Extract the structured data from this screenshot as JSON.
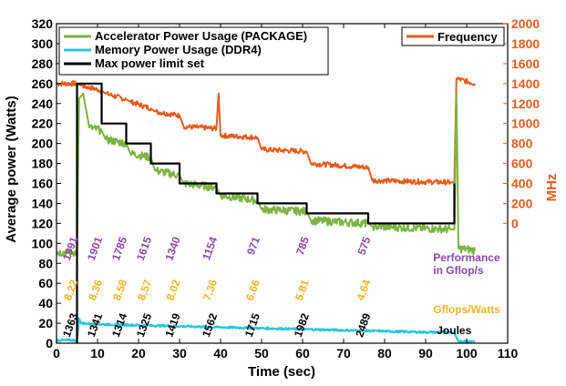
{
  "chart_data": {
    "type": "line",
    "xlabel": "Time (sec)",
    "ylabel": "Average power (Watts)",
    "y2label": "MHz",
    "xlim": [
      0,
      110
    ],
    "ylim": [
      0,
      320
    ],
    "y2lim": [
      -1200,
      2000
    ],
    "x_ticks": [
      "0",
      "10",
      "20",
      "30",
      "40",
      "50",
      "60",
      "70",
      "80",
      "90",
      "100",
      "110"
    ],
    "y_ticks": [
      "0",
      "20",
      "40",
      "60",
      "80",
      "100",
      "120",
      "140",
      "160",
      "180",
      "200",
      "220",
      "240",
      "260",
      "280",
      "300",
      "320"
    ],
    "y2_ticks": [
      "0",
      "200",
      "400",
      "600",
      "800",
      "1000",
      "1200",
      "1400",
      "1600",
      "1800",
      "2000"
    ],
    "legend_left": {
      "placement": "top-left",
      "items": [
        {
          "label": "Accelerator Power Usage (PACKAGE)",
          "color": "#7cb342"
        },
        {
          "label": "Memory Power Usage (DDR4)",
          "color": "#26c6da"
        },
        {
          "label": "Max power limit set",
          "color": "#000000"
        }
      ]
    },
    "legend_right": {
      "placement": "top-right",
      "items": [
        {
          "label": "Frequency",
          "color": "#e65c1e"
        }
      ]
    },
    "series": [
      {
        "name": "Accelerator Power Usage (PACKAGE)",
        "axis": "left",
        "color": "#7cb342",
        "x": [
          0,
          5,
          5.5,
          6.5,
          8,
          11,
          12,
          17,
          18,
          23,
          24,
          30,
          31,
          39,
          40,
          49,
          50,
          61,
          62,
          76,
          77,
          96,
          97,
          97.5,
          98,
          102
        ],
        "y": [
          91,
          91,
          245,
          250,
          216,
          213,
          204,
          200,
          190,
          186,
          173,
          168,
          160,
          156,
          148,
          143,
          134,
          132,
          123,
          120,
          117,
          114,
          114,
          250,
          95,
          93
        ]
      },
      {
        "name": "Memory Power Usage (DDR4)",
        "axis": "left",
        "color": "#26c6da",
        "x": [
          0,
          5,
          5.5,
          6,
          10,
          20,
          30,
          40,
          50,
          60,
          70,
          80,
          90,
          96,
          97,
          98,
          102
        ],
        "y": [
          3,
          3,
          25,
          20,
          19,
          18,
          17,
          16,
          15,
          14,
          13,
          12,
          11,
          11,
          10,
          2,
          2
        ]
      },
      {
        "name": "Max power limit set",
        "axis": "left",
        "color": "#000000",
        "x": [
          5,
          5,
          11,
          11,
          17,
          17,
          23,
          23,
          30,
          30,
          39,
          39,
          49,
          49,
          61,
          61,
          76,
          76,
          97,
          97
        ],
        "y": [
          0,
          260,
          260,
          220,
          220,
          200,
          200,
          180,
          180,
          160,
          160,
          150,
          150,
          140,
          140,
          130,
          130,
          120,
          120,
          160
        ]
      },
      {
        "name": "Frequency",
        "axis": "right",
        "color": "#e65c1e",
        "x": [
          0,
          5,
          6,
          11,
          12,
          17,
          18,
          23,
          24,
          30,
          31,
          39,
          39.5,
          40,
          49,
          50,
          61,
          62,
          76,
          77,
          96,
          97,
          97.5,
          102
        ],
        "y": [
          1400,
          1400,
          1380,
          1330,
          1300,
          1240,
          1220,
          1150,
          1120,
          1080,
          970,
          950,
          1300,
          880,
          860,
          740,
          720,
          600,
          560,
          430,
          410,
          410,
          1450,
          1400
        ]
      }
    ],
    "annotations": {
      "performance": {
        "label_lines": [
          "Performance",
          "in Gflop/s"
        ],
        "color": "#8e44ad",
        "points": [
          {
            "x": 5.2,
            "text": "1991"
          },
          {
            "x": 11.2,
            "text": "1901"
          },
          {
            "x": 17.2,
            "text": "1785"
          },
          {
            "x": 23.2,
            "text": "1615"
          },
          {
            "x": 30.2,
            "text": "1340"
          },
          {
            "x": 39.2,
            "text": "1154"
          },
          {
            "x": 49.6,
            "text": "971"
          },
          {
            "x": 61.6,
            "text": "785"
          },
          {
            "x": 76.6,
            "text": "575"
          }
        ]
      },
      "efficiency": {
        "label_lines": [
          "Gflops/Watts"
        ],
        "color": "#f0b429",
        "points": [
          {
            "x": 5.2,
            "text": "8.22"
          },
          {
            "x": 11.2,
            "text": "8.36"
          },
          {
            "x": 17.2,
            "text": "8.58"
          },
          {
            "x": 23.2,
            "text": "8.57"
          },
          {
            "x": 30.2,
            "text": "8.02"
          },
          {
            "x": 39.2,
            "text": "7.36"
          },
          {
            "x": 49.6,
            "text": "6.66"
          },
          {
            "x": 61.6,
            "text": "5.81"
          },
          {
            "x": 76.6,
            "text": "4.64"
          }
        ]
      },
      "energy": {
        "label_lines": [
          "Joules"
        ],
        "color": "#000000",
        "points": [
          {
            "x": 5.2,
            "text": "1363"
          },
          {
            "x": 11.2,
            "text": "1341"
          },
          {
            "x": 17.2,
            "text": "1314"
          },
          {
            "x": 23.2,
            "text": "1325"
          },
          {
            "x": 30.2,
            "text": "1419"
          },
          {
            "x": 39.2,
            "text": "1562"
          },
          {
            "x": 49.6,
            "text": "1715"
          },
          {
            "x": 61.6,
            "text": "1982"
          },
          {
            "x": 76.6,
            "text": "2489"
          }
        ]
      }
    },
    "grid": false
  }
}
